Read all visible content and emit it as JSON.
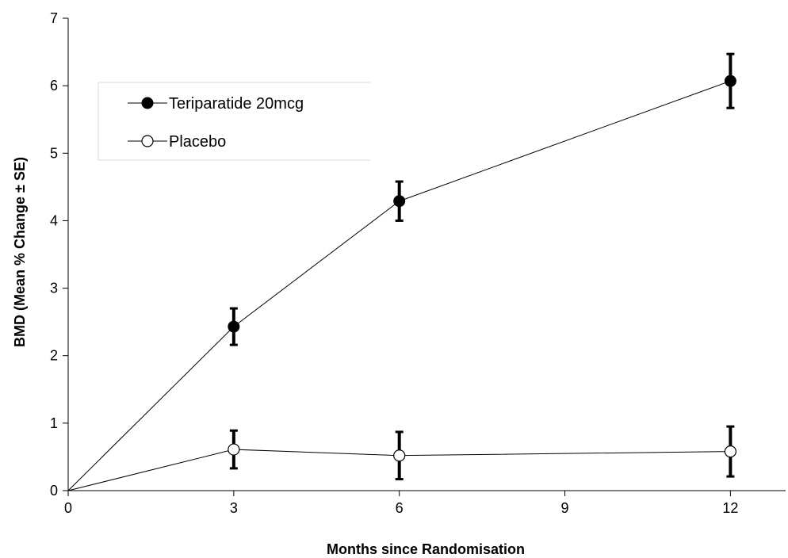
{
  "chart_data": {
    "type": "line",
    "title": "",
    "xlabel": "Months since Randomisation",
    "ylabel": "BMD (Mean % Change  ± SE)",
    "xlim": [
      0,
      13
    ],
    "ylim": [
      0,
      7
    ],
    "xticks": [
      0,
      3,
      6,
      9,
      12
    ],
    "yticks": [
      0,
      1,
      2,
      3,
      4,
      5,
      6,
      7
    ],
    "grid": false,
    "legend_position": "upper-left",
    "series": [
      {
        "name": "Teriparatide 20mcg",
        "marker": "filled-circle",
        "color": "#000000",
        "x": [
          0,
          3,
          6,
          12
        ],
        "y": [
          0,
          2.43,
          4.29,
          6.07
        ],
        "se": [
          0,
          0.27,
          0.29,
          0.4
        ]
      },
      {
        "name": "Placebo",
        "marker": "open-circle",
        "color": "#000000",
        "x": [
          0,
          3,
          6,
          12
        ],
        "y": [
          0,
          0.61,
          0.52,
          0.58
        ],
        "se": [
          0,
          0.28,
          0.35,
          0.37
        ]
      }
    ]
  }
}
